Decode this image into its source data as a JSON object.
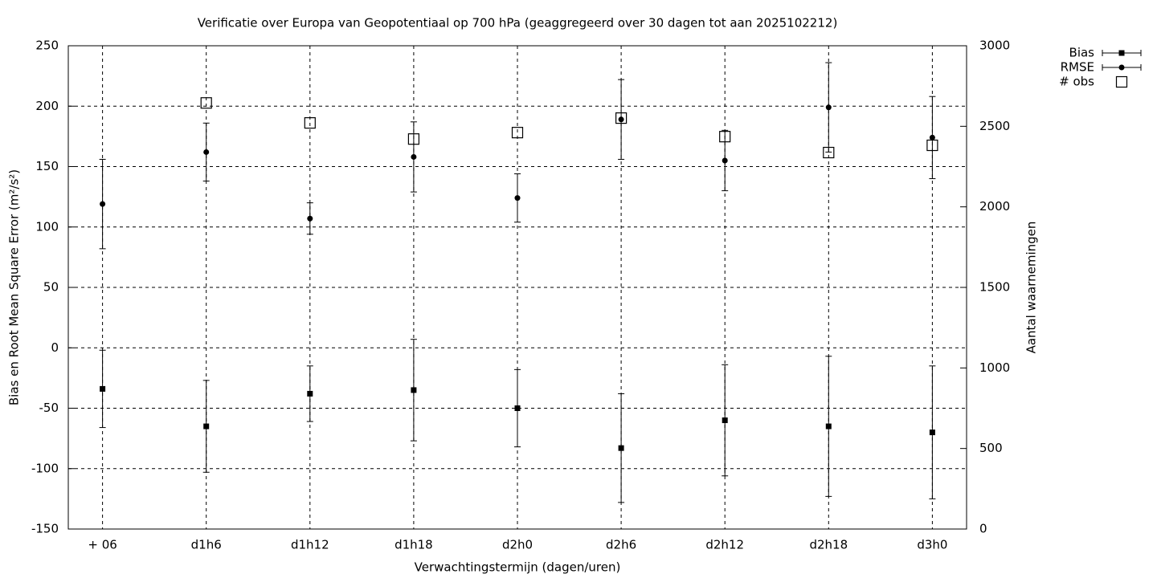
{
  "chart_data": {
    "type": "errorbar",
    "title": "Verificatie over Europa van Geopotentiaal op 700 hPa (geaggregeerd over 30 dagen tot aan 2025102212)",
    "xlabel": "Verwachtingstermijn (dagen/uren)",
    "ylabel": "Bias en Root Mean Square Error (m²/s²)",
    "y2label": "Aantal waarnemingen",
    "categories": [
      "+ 06",
      "d1h6",
      "d1h12",
      "d1h18",
      "d2h0",
      "d2h6",
      "d2h12",
      "d2h18",
      "d3h0"
    ],
    "series": [
      {
        "name": "Bias",
        "color": "#000000",
        "marker": "square",
        "values": [
          -34,
          -65,
          -38,
          -35,
          -50,
          -83,
          -60,
          -65,
          -70
        ],
        "error": [
          32,
          38,
          23,
          42,
          32,
          45,
          46,
          58,
          55
        ]
      },
      {
        "name": "RMSE",
        "color": "#000000",
        "marker": "circle",
        "values": [
          119,
          162,
          107,
          158,
          124,
          189,
          155,
          199,
          174
        ],
        "error": [
          37,
          24,
          13,
          29,
          20,
          33,
          25,
          37,
          34
        ]
      },
      {
        "name": "# obs",
        "color": "#000000",
        "marker": "open-square",
        "axis": "y2",
        "values": [
          null,
          2645,
          2521,
          2421,
          2461,
          2551,
          2436,
          2337,
          2382
        ]
      }
    ],
    "ylim": [
      -150,
      250
    ],
    "yticks": [
      -150,
      -100,
      -50,
      0,
      50,
      100,
      150,
      200,
      250
    ],
    "y2lim": [
      0,
      3000
    ],
    "y2ticks": [
      0,
      500,
      1000,
      1500,
      2000,
      2500,
      3000
    ],
    "grid": true,
    "legend": "outside-top-right"
  }
}
